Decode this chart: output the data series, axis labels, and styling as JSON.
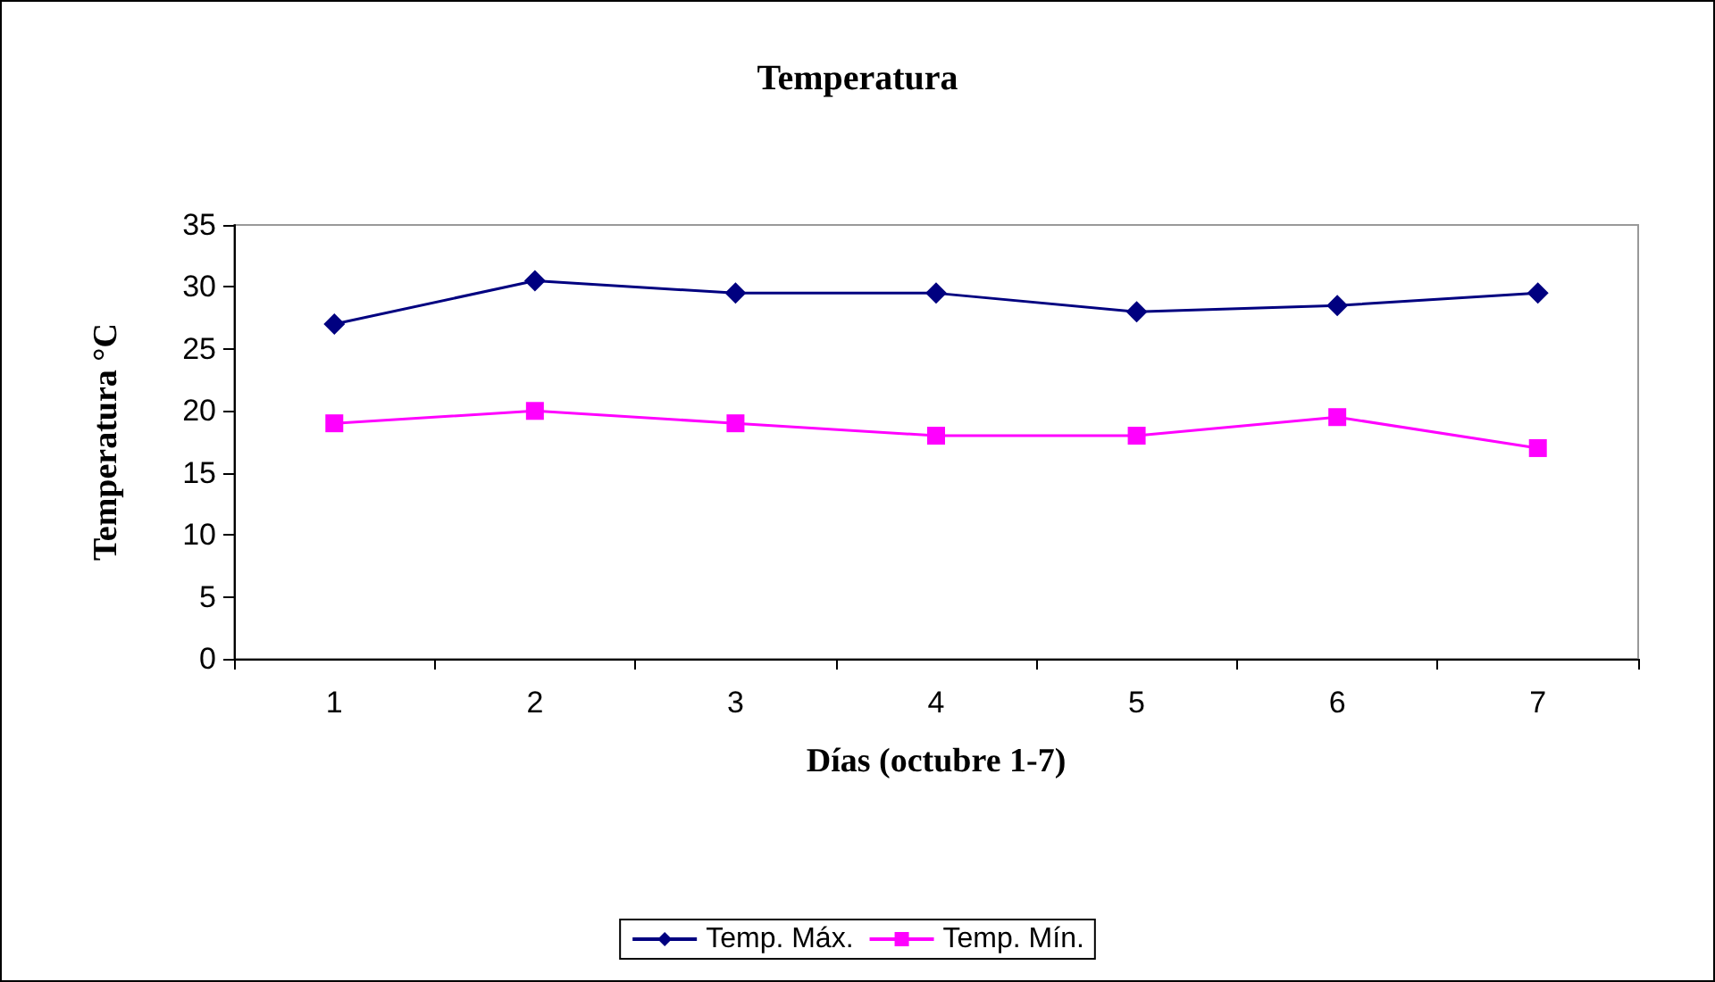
{
  "chart_data": {
    "type": "line",
    "title": "Temperatura",
    "xlabel": "Días (octubre 1-7)",
    "ylabel": "Temperatura °C",
    "categories": [
      "1",
      "2",
      "3",
      "4",
      "5",
      "6",
      "7"
    ],
    "series": [
      {
        "name": "Temp. Máx.",
        "color": "#000080",
        "marker": "diamond",
        "values": [
          27,
          30.5,
          29.5,
          29.5,
          28,
          28.5,
          29.5
        ]
      },
      {
        "name": "Temp. Mín.",
        "color": "#ff00ff",
        "marker": "square",
        "values": [
          19,
          20,
          19,
          18,
          18,
          19.5,
          17
        ]
      }
    ],
    "ylim": [
      0,
      35
    ],
    "yticks": [
      0,
      5,
      10,
      15,
      20,
      25,
      30,
      35
    ],
    "grid": false,
    "legend": "bottom",
    "line_style": "solid"
  }
}
